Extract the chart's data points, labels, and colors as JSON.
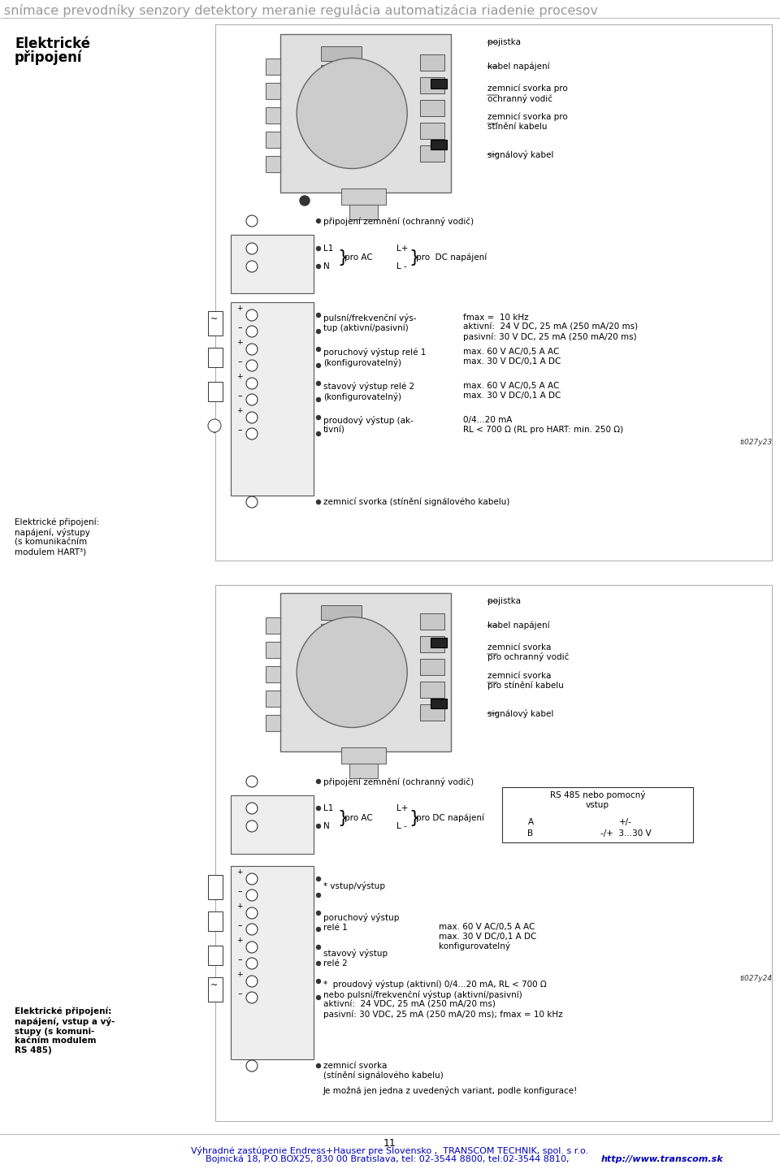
{
  "bg_color": "#ffffff",
  "page_bg": "#ffffff",
  "header_text": "snímace prevodníky senzory detektory meranie regulácia automatizácia riadenie procesov",
  "header_color": "#999999",
  "header_fontsize": 11.5,
  "footer_line1": "Výhradné zastúpenie Endress+Hauser pre Slovensko ,  TRANSCOM TECHNIK, spol. s r.o.",
  "footer_line2": "Bojnická 18, P.O.BOX25, 830 00 Bratislava, tel: 02-3544 8800, tel:02-3544 8810,  ",
  "footer_url": "http://www.transcom.sk",
  "footer_color": "#0000bb",
  "footer_fontsize": 8.0,
  "page_number": "11",
  "sec1_title1": "Elektrické",
  "sec1_title2": "připojení",
  "sec1_title_fs": 12,
  "diagram1_labels": [
    "pojistka",
    "kabel napájení",
    "zemnicí svorka pro\nochranný vodič",
    "zemnicí svorka pro\nstínění kabelu",
    "signálový kabel"
  ],
  "wiring1_ground_label": "připojení zemnění (ochranný vodič)",
  "wiring1_L1": "L1",
  "wiring1_N": "N",
  "wiring1_brace1": "}",
  "wiring1_proAC": "pro AC",
  "wiring1_Lplus": "L+",
  "wiring1_Lminus": "L -",
  "wiring1_brace2": "}",
  "wiring1_proDC": "pro  DC napájení",
  "desc1_col1": [
    "pulsní/frekvenční výs-\ntup (aktivní/pasivní)",
    "poruchový výstup relé 1\n(konfigurovatelný)",
    "stavový výstup relé 2\n(konfigurovatelný)",
    "proudový výstup (ak-\ntivní)"
  ],
  "desc1_col2": [
    "fmax =  10 kHz\naktivní:  24 V DC, 25 mA (250 mA/20 ms)\npasivní: 30 V DC, 25 mA (250 mA/20 ms)",
    "max. 60 V AC/0,5 A AC\nmax. 30 V DC/0,1 A DC",
    "max. 60 V AC/0,5 A AC\nmax. 30 V DC/0,1 A DC",
    "0/4...20 mA\nRL < 700 Ω (RL pro HART: min. 250 Ω)"
  ],
  "ground1_label": "zemnicí svorka (stínění signálového kabelu)",
  "side1_label": "ti027y23",
  "sec1_bottom_title": "Elektrické připojení:\nnapájení, výstupy\n(s komunikačním\nmodulem HART³)",
  "diagram2_labels": [
    "pojistka",
    "kabel napájení",
    "zemnicí svorka\npro ochranný vodič",
    "zemnicí svorka\npro stínění kabelu",
    "signálový kabel"
  ],
  "wiring2_ground_label": "připojení zemnění (ochranný vodič)",
  "rs485_title": "RS 485 nebo pomocný\nvstup",
  "rs485_A": "A",
  "rs485_B": "B",
  "rs485_pm": "+/-",
  "rs485_val": "-/+  3...30 V",
  "vstup_label": "* vstup/výstup",
  "poruchovy_label": "poruchový výstup\nrelé 1",
  "stavovy_label": "stavový výstup\nrelé 2",
  "brace_desc": "max. 60 V AC/0,5 A AC\nmax. 30 V DC/0,1 A DC\nkonfigurovatelný",
  "proudovy_label": "*  proudový výstup (aktivní) 0/4...20 mA, RL < 700 Ω\nnebo pulsní/frekvenční výstup (aktivní/pasivní)\naktivní:  24 VDC, 25 mA (250 mA/20 ms)\npasivní: 30 VDC, 25 mA (250 mA/20 ms); fmax = 10 kHz",
  "ground2_label": "zemnicí svorka\n(stínění signálového kabelu)",
  "final_note": "Je možná jen jedna z uvedených variant, podle konfigurace!",
  "side2_label": "ti027y24",
  "sec2_bottom_title": "Elektrické připojení:\nnapájení, vstup a vý-\nstupy (s komuni-\nkačním modulem\nRS 485)"
}
